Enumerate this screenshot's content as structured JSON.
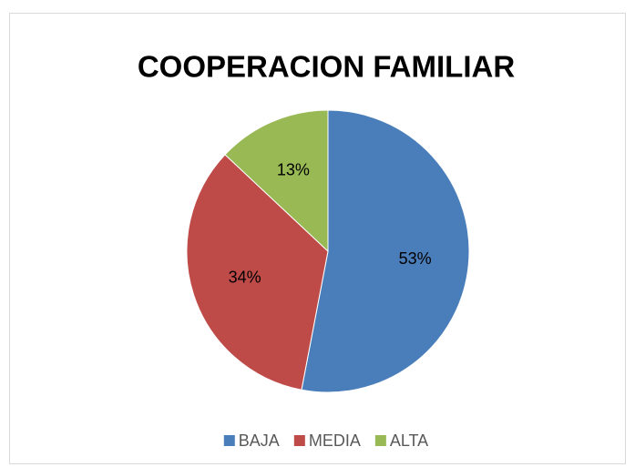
{
  "chart_data": {
    "type": "pie",
    "title": "COOPERACION FAMILIAR",
    "categories": [
      "BAJA",
      "MEDIA",
      "ALTA"
    ],
    "values": [
      53,
      34,
      13
    ],
    "value_labels": [
      "53%",
      "34%",
      "13%"
    ],
    "colors": [
      "#4a7ebb",
      "#be4b48",
      "#98b954"
    ],
    "legend": "bottom"
  }
}
